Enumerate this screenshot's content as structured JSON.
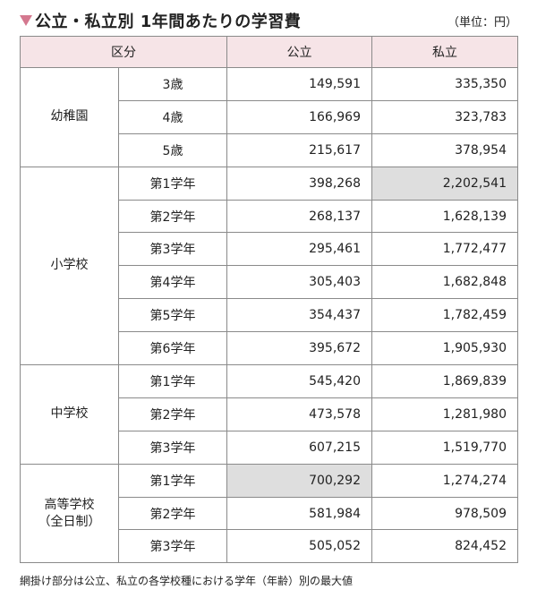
{
  "header": {
    "title": "公立・私立別 1年間あたりの学習費",
    "unit": "（単位：円）"
  },
  "columns": [
    "区分",
    "公立",
    "私立"
  ],
  "groups": [
    {
      "name": "幼稚園",
      "rows": [
        {
          "label": "3歳",
          "public": "149,591",
          "private": "335,350"
        },
        {
          "label": "4歳",
          "public": "166,969",
          "private": "323,783"
        },
        {
          "label": "5歳",
          "public": "215,617",
          "private": "378,954"
        }
      ]
    },
    {
      "name": "小学校",
      "rows": [
        {
          "label": "第1学年",
          "public": "398,268",
          "private": "2,202,541"
        },
        {
          "label": "第2学年",
          "public": "268,137",
          "private": "1,628,139"
        },
        {
          "label": "第3学年",
          "public": "295,461",
          "private": "1,772,477"
        },
        {
          "label": "第4学年",
          "public": "305,403",
          "private": "1,682,848"
        },
        {
          "label": "第5学年",
          "public": "354,437",
          "private": "1,782,459"
        },
        {
          "label": "第6学年",
          "public": "395,672",
          "private": "1,905,930"
        }
      ]
    },
    {
      "name": "中学校",
      "rows": [
        {
          "label": "第1学年",
          "public": "545,420",
          "private": "1,869,839"
        },
        {
          "label": "第2学年",
          "public": "473,578",
          "private": "1,281,980"
        },
        {
          "label": "第3学年",
          "public": "607,215",
          "private": "1,519,770"
        }
      ]
    },
    {
      "name": "高等学校",
      "name_sub": "（全日制）",
      "rows": [
        {
          "label": "第1学年",
          "public": "700,292",
          "private": "1,274,274"
        },
        {
          "label": "第2学年",
          "public": "581,984",
          "private": "978,509"
        },
        {
          "label": "第3学年",
          "public": "505,052",
          "private": "824,452"
        }
      ]
    }
  ],
  "footnote": "網掛け部分は公立、私立の各学校種における学年（年齢）別の最大値",
  "colors": {
    "header_bg": "#f6e4e7",
    "highlight_bg": "#dedede",
    "accent": "#d4788f"
  }
}
